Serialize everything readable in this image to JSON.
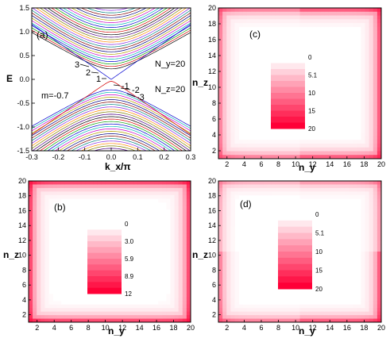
{
  "chart_data": [
    {
      "type": "line",
      "panel_label": "(a)",
      "xlabel": "k_x/π",
      "ylabel": "E",
      "xlim": [
        -0.3,
        0.3
      ],
      "ylim": [
        -1.5,
        1.5
      ],
      "xticks": [
        "-0.3",
        "-0.2",
        "-0.1",
        "0.0",
        "0.1",
        "0.2",
        "0.3"
      ],
      "yticks": [
        "1.5",
        "1.0",
        "0.5",
        "0.0",
        "-0.5",
        "-1.0",
        "-1.5"
      ],
      "annotations": {
        "mass": "m=-0.7",
        "ny": "N_y=20",
        "nz": "N_z=20",
        "upper_bands": [
          "1",
          "2",
          "3"
        ],
        "lower_bands": [
          "-1",
          "-2",
          "-3"
        ]
      },
      "bands": {
        "edge_upper": [
          {
            "x": -0.3,
            "y": 1.16
          },
          {
            "x": 0.0,
            "y": 0.0
          },
          {
            "x": 0.3,
            "y": 1.16
          }
        ],
        "edge_lower": [
          {
            "x": -0.3,
            "y": -1.16
          },
          {
            "x": 0.0,
            "y": -0.04
          },
          {
            "x": 0.3,
            "y": -1.16
          }
        ],
        "bulk_min_energy": 0.22,
        "bulk_max_energy": 1.5
      }
    },
    {
      "type": "heatmap",
      "panel_label": "(c)",
      "xlabel": "n_y",
      "ylabel": "n_z",
      "xlim": [
        1,
        20
      ],
      "ylim": [
        1,
        20
      ],
      "xticks": [
        "2",
        "4",
        "6",
        "8",
        "10",
        "12",
        "14",
        "16",
        "18",
        "20"
      ],
      "yticks": [
        "2",
        "4",
        "6",
        "8",
        "10",
        "12",
        "14",
        "16",
        "18",
        "20"
      ],
      "colorbar": [
        "0",
        "5.1",
        "10",
        "15",
        "20"
      ],
      "pattern": "boundary"
    },
    {
      "type": "heatmap",
      "panel_label": "(b)",
      "xlabel": "n_y",
      "ylabel": "n_z",
      "xlim": [
        1,
        20
      ],
      "ylim": [
        1,
        20
      ],
      "xticks": [
        "2",
        "4",
        "6",
        "8",
        "10",
        "12",
        "14",
        "16",
        "18",
        "20"
      ],
      "yticks": [
        "2",
        "4",
        "6",
        "8",
        "10",
        "12",
        "14",
        "16",
        "18",
        "20"
      ],
      "colorbar": [
        "0",
        "3.0",
        "5.9",
        "8.9",
        "12"
      ],
      "pattern": "boundary-strong"
    },
    {
      "type": "heatmap",
      "panel_label": "(d)",
      "xlabel": "n_y",
      "ylabel": "n_z",
      "xlim": [
        1,
        20
      ],
      "ylim": [
        1,
        20
      ],
      "xticks": [
        "2",
        "4",
        "6",
        "8",
        "10",
        "12",
        "14",
        "16",
        "18",
        "20"
      ],
      "yticks": [
        "2",
        "4",
        "6",
        "8",
        "10",
        "12",
        "14",
        "16",
        "18",
        "20"
      ],
      "colorbar": [
        "0",
        "5.1",
        "10",
        "15",
        "20"
      ],
      "pattern": "boundary-bottom-right"
    }
  ],
  "colors": {
    "heat_low": "#ffffff",
    "heat_high": "#ff0000"
  }
}
